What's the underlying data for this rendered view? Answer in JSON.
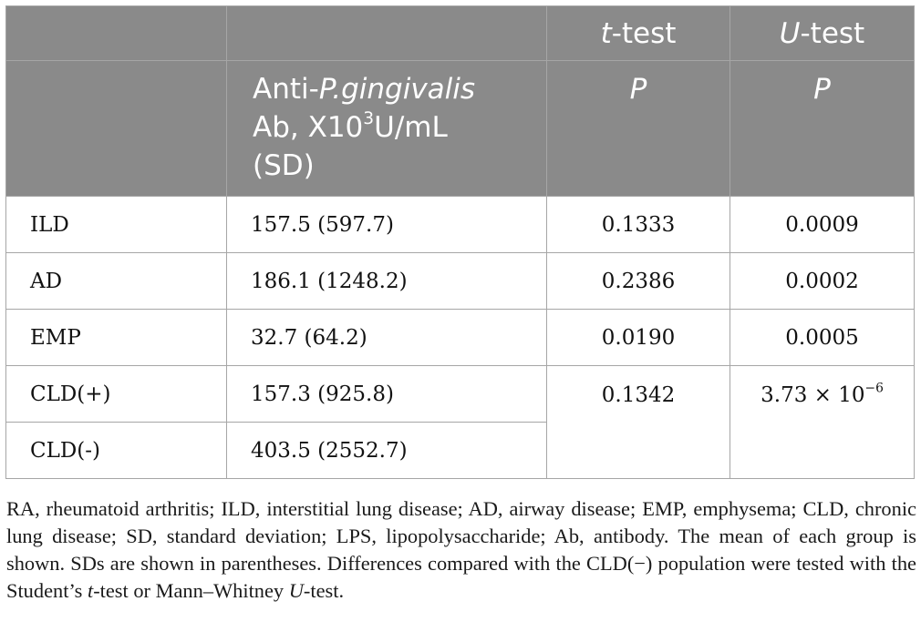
{
  "table": {
    "header_top": [
      "",
      "",
      "t-test",
      "U-test"
    ],
    "header_top_italic": [
      "",
      "",
      "t",
      "U"
    ],
    "header_top_rest": [
      "",
      "",
      "-test",
      "-test"
    ],
    "header_sub": {
      "anti_prefix": "Anti-",
      "anti_italic": "P.gingivalis",
      "line2_a": "Ab, X10",
      "line2_sup": "3",
      "line2_b": "U/mL",
      "line3": "(SD)",
      "p_ttest": "P",
      "p_utest": "P"
    },
    "rows": [
      {
        "group": "ILD",
        "value": "157.5 (597.7)",
        "t": "0.1333",
        "u": "0.0009"
      },
      {
        "group": "AD",
        "value": "186.1 (1248.2)",
        "t": "0.2386",
        "u": "0.0002"
      },
      {
        "group": "EMP",
        "value": "32.7 (64.2)",
        "t": "0.0190",
        "u": "0.0005"
      },
      {
        "group": "CLD(+)",
        "value": "157.3 (925.8)",
        "t": "0.1342",
        "u_base": "3.73 × 10",
        "u_sup": "−6"
      },
      {
        "group": "CLD(-)",
        "value": "403.5 (2552.7)"
      }
    ]
  },
  "footnote": {
    "line1": "RA, rheumatoid arthritis; ILD, interstitial lung disease; AD, airway disease; EMP, emphysema;",
    "line2": "CLD, chronic lung disease; SD, standard deviation; LPS, lipopolysaccharide; Ab, antibody.",
    "line3": "The mean of each group is shown. SDs are shown in parentheses. Differences compared with",
    "line4_a": "the CLD(−) population were tested with the Student’s ",
    "line4_t": "t",
    "line4_b": "-test or Mann–Whitney ",
    "line4_u": "U",
    "line4_c": "-test."
  }
}
